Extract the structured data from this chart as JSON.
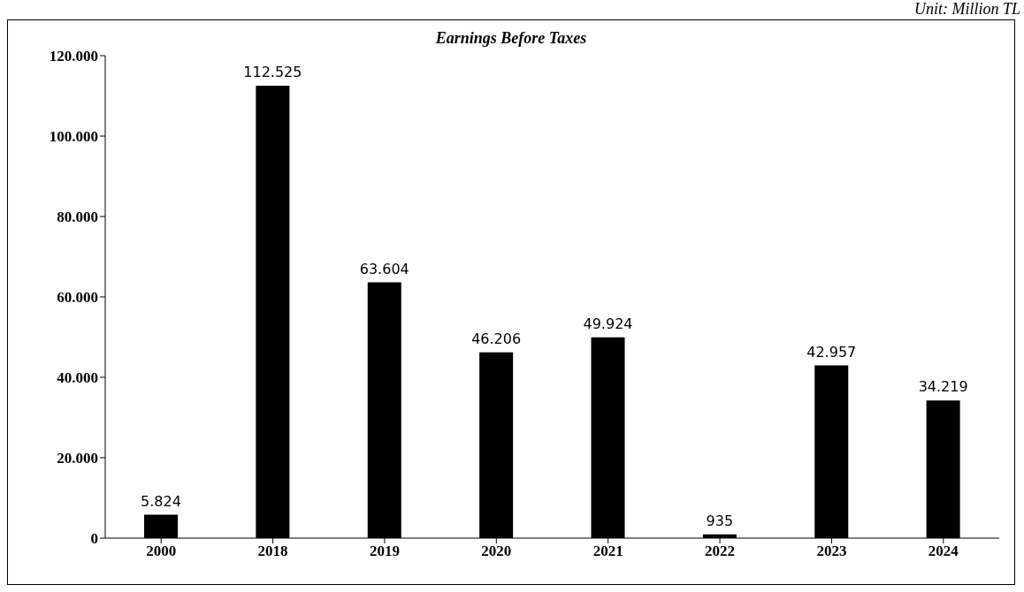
{
  "chart_data": {
    "type": "bar",
    "title": "Earnings Before Taxes",
    "annotations": [
      "Unit: Million TL"
    ],
    "categories": [
      "2000",
      "2018",
      "2019",
      "2020",
      "2021",
      "2022",
      "2023",
      "2024"
    ],
    "values": [
      5824,
      112525,
      63604,
      46206,
      49924,
      935,
      42957,
      34219
    ],
    "value_labels": [
      "5.824",
      "112.525",
      "63.604",
      "46.206",
      "49.924",
      "935",
      "42.957",
      "34.219"
    ],
    "color": "#000000",
    "ylim": [
      0,
      120000
    ],
    "yticks": [
      {
        "value": 0,
        "label": "0"
      },
      {
        "value": 20000,
        "label": "20.000"
      },
      {
        "value": 40000,
        "label": "40.000"
      },
      {
        "value": 60000,
        "label": "60.000"
      },
      {
        "value": 80000,
        "label": "80.000"
      },
      {
        "value": 100000,
        "label": "100.000"
      },
      {
        "value": 120000,
        "label": "120.000"
      }
    ],
    "grid": false,
    "legend": false
  }
}
